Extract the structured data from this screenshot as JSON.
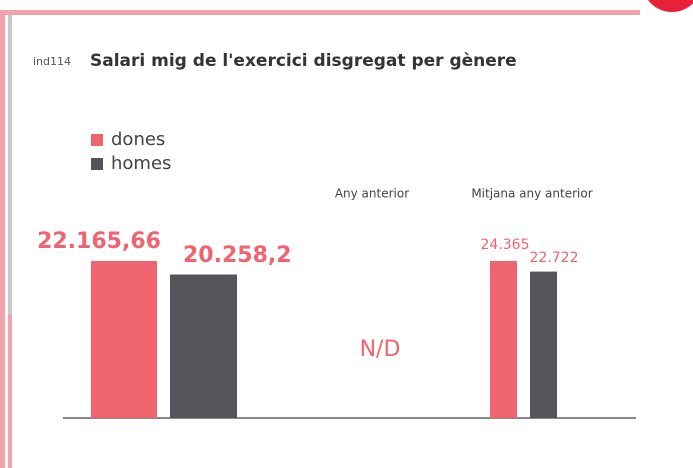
{
  "code": "ind114",
  "chart_data": {
    "type": "bar",
    "title": "Salari mig de l'exercici disgregat per gènere",
    "categories": [
      null,
      "Any anterior",
      "Mitjana any anterior"
    ],
    "series": [
      {
        "name": "dones",
        "color": "#f0646f",
        "values": [
          22165.66,
          null,
          24365
        ],
        "value_labels": [
          "22.165,66",
          null,
          "24.365"
        ]
      },
      {
        "name": "homes",
        "color": "#57535a",
        "values": [
          20258.2,
          null,
          22722
        ],
        "value_labels": [
          "20.258,2",
          null,
          "22.722"
        ]
      }
    ],
    "annotation": "N/D",
    "legend": "top-left"
  }
}
